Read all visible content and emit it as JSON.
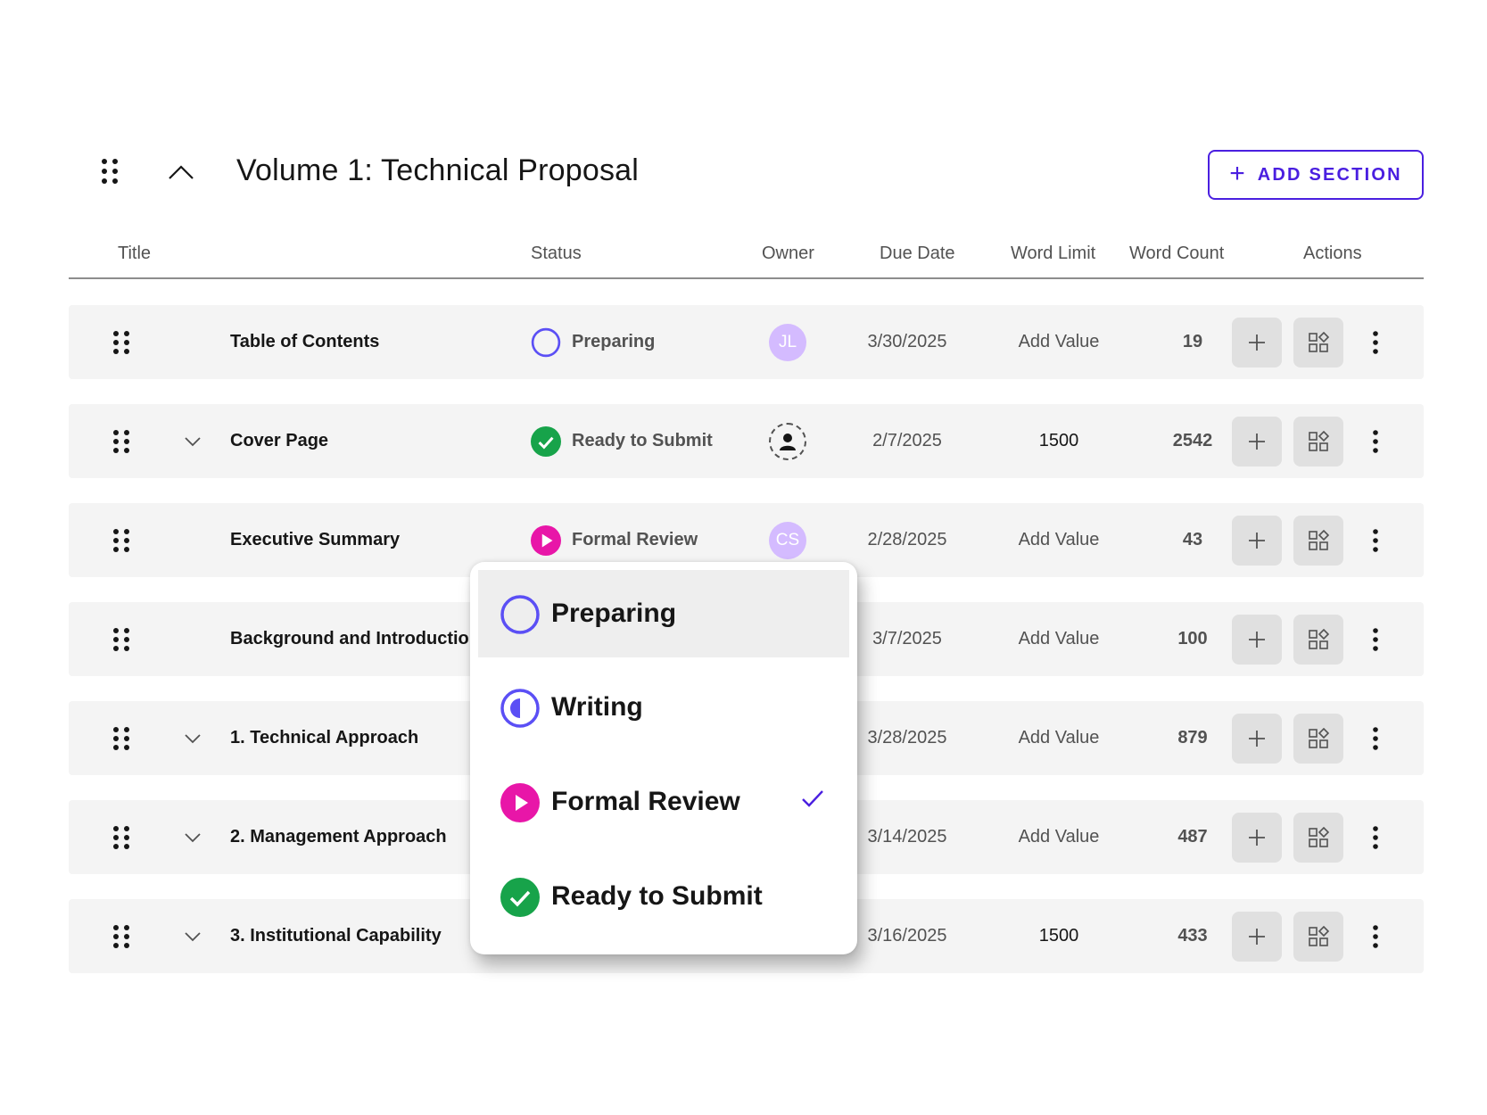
{
  "header": {
    "title": "Volume 1: Technical Proposal",
    "add_section_label": "ADD SECTION"
  },
  "columns": {
    "title": "Title",
    "status": "Status",
    "owner": "Owner",
    "due_date": "Due Date",
    "word_limit": "Word Limit",
    "word_count": "Word Count",
    "actions": "Actions"
  },
  "rows": [
    {
      "title": "Table of Contents",
      "expandable": false,
      "status": "Preparing",
      "status_icon": "preparing-icon",
      "owner": "JL",
      "due_date": "3/30/2025",
      "word_limit": "Add Value",
      "word_count": "19"
    },
    {
      "title": "Cover Page",
      "expandable": true,
      "status": "Ready to Submit",
      "status_icon": "ready-icon",
      "owner": "",
      "due_date": "2/7/2025",
      "word_limit": "1500",
      "word_count": "2542"
    },
    {
      "title": "Executive Summary",
      "expandable": false,
      "status": "Formal Review",
      "status_icon": "formal-review-icon",
      "owner": "CS",
      "due_date": "2/28/2025",
      "word_limit": "Add Value",
      "word_count": "43"
    },
    {
      "title": "Background and Introduction",
      "expandable": false,
      "status": "",
      "status_icon": "",
      "owner": "",
      "due_date": "3/7/2025",
      "word_limit": "Add Value",
      "word_count": "100"
    },
    {
      "title": "1. Technical Approach",
      "expandable": true,
      "status": "",
      "status_icon": "",
      "owner": "",
      "due_date": "3/28/2025",
      "word_limit": "Add Value",
      "word_count": "879"
    },
    {
      "title": "2. Management Approach",
      "expandable": true,
      "status": "",
      "status_icon": "",
      "owner": "",
      "due_date": "3/14/2025",
      "word_limit": "Add Value",
      "word_count": "487"
    },
    {
      "title": "3. Institutional Capability",
      "expandable": true,
      "status": "",
      "status_icon": "",
      "owner": "",
      "due_date": "3/16/2025",
      "word_limit": "1500",
      "word_count": "433"
    }
  ],
  "status_dropdown": {
    "options": [
      {
        "label": "Preparing",
        "icon": "preparing-icon"
      },
      {
        "label": "Writing",
        "icon": "writing-icon"
      },
      {
        "label": "Formal Review",
        "icon": "formal-review-icon"
      },
      {
        "label": "Ready to Submit",
        "icon": "ready-icon"
      }
    ],
    "highlighted": "Preparing",
    "checked": "Formal Review"
  },
  "colors": {
    "accent": "#4a1fe0",
    "preparing": "#5b4ff5",
    "formal_review": "#e816a8",
    "ready": "#17a34a",
    "avatar": "#d4bbff",
    "row_bg": "#f4f4f4"
  }
}
